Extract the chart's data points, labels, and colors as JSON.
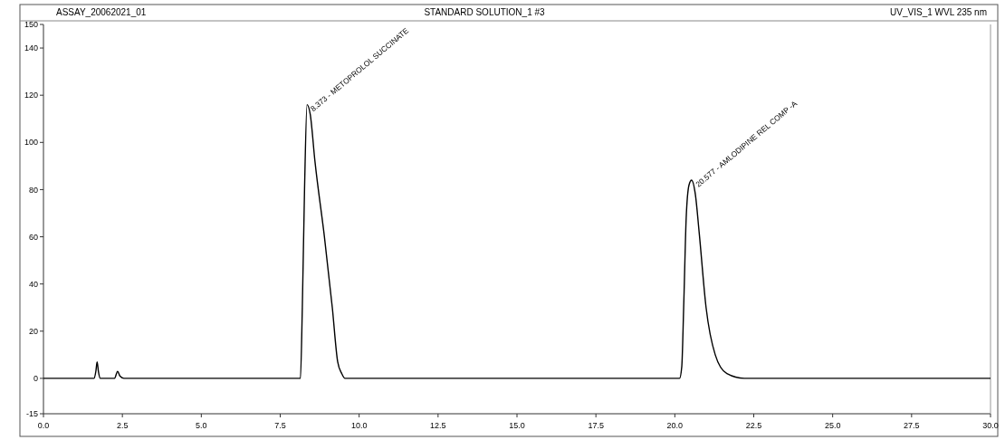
{
  "chart_data": {
    "type": "line",
    "title": "STANDARD SOLUTION_1 #3",
    "annotations": [
      "ASSAY_20062021_01",
      "UV_VIS_1 WVL 235 nm",
      {
        "text": "8.373 - METOPROLOL SUCCINATE",
        "x": 8.373,
        "y": 116
      },
      {
        "text": "20.577 - AMLODIPINE REL COMP -A",
        "x": 20.577,
        "y": 84
      }
    ],
    "series": [
      {
        "color": "#000000",
        "x": [
          0,
          1.6,
          1.66,
          1.7,
          1.74,
          1.8,
          2.25,
          2.35,
          2.42,
          2.55,
          8.1,
          8.14,
          8.2,
          8.27,
          8.35,
          8.45,
          8.6,
          8.9,
          9.15,
          9.32,
          9.45,
          9.55,
          9.8,
          20.15,
          20.22,
          20.28,
          20.36,
          20.45,
          20.53,
          20.65,
          20.77,
          20.99,
          21.28,
          21.65,
          22.2,
          30
        ],
        "values": [
          0,
          0,
          3,
          7,
          3,
          0,
          0,
          3,
          1,
          0,
          0,
          0,
          30,
          80,
          116,
          112,
          92,
          60,
          30,
          7,
          2,
          0,
          0,
          0,
          5,
          30,
          68,
          82,
          84,
          78,
          62,
          30,
          10,
          2,
          0,
          0
        ]
      }
    ],
    "xlim": [
      0,
      30
    ],
    "xticks": [
      {
        "value": 0,
        "label": "0.0"
      },
      {
        "value": 2.5,
        "label": "2.5"
      },
      {
        "value": 5,
        "label": "5.0"
      },
      {
        "value": 7.5,
        "label": "7.5"
      },
      {
        "value": 10,
        "label": "10.0"
      },
      {
        "value": 12.5,
        "label": "12.5"
      },
      {
        "value": 15,
        "label": "15.0"
      },
      {
        "value": 17.5,
        "label": "17.5"
      },
      {
        "value": 20,
        "label": "20.0"
      },
      {
        "value": 22.5,
        "label": "22.5"
      },
      {
        "value": 25,
        "label": "25.0"
      },
      {
        "value": 27.5,
        "label": "27.5"
      },
      {
        "value": 30,
        "label": "30.0"
      }
    ],
    "ylim": [
      -15,
      150
    ],
    "yticks": [
      -15,
      0,
      20,
      40,
      60,
      80,
      100,
      120,
      140,
      150
    ],
    "marker": "none",
    "line_style": "solid"
  }
}
